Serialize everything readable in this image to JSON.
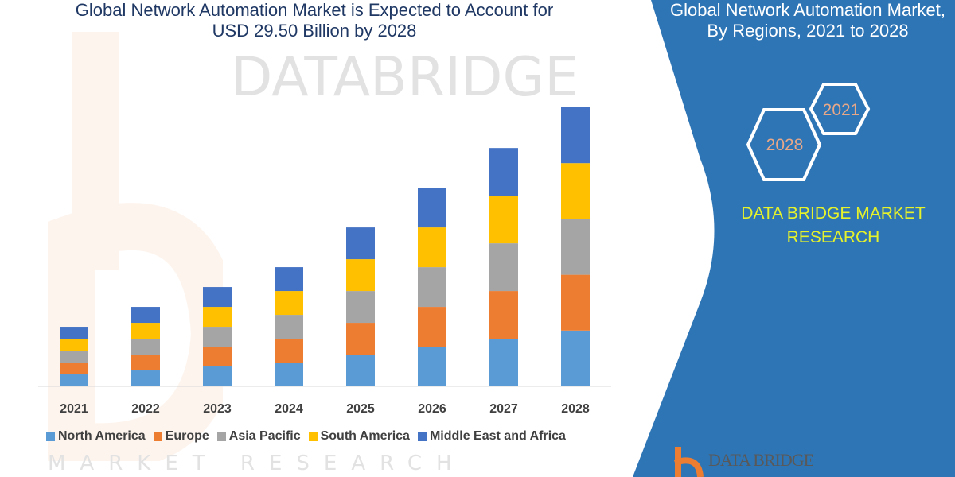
{
  "header": {
    "title_line1": "Global Network Automation Market is Expected to Account for",
    "title_line2": "USD 29.50 Billion by 2028"
  },
  "panel": {
    "title_line1": "Global Network Automation Market,",
    "title_line2": "By Regions, 2021 to 2028",
    "hex_year_1": "2021",
    "hex_year_2": "2028",
    "brand_line1": "DATA BRIDGE MARKET",
    "brand_line2": "RESEARCH",
    "logo_text": "DATA BRIDGE",
    "color": "#2e75b6",
    "brand_color": "#e6f22a",
    "hex_text_color": "#e8a888"
  },
  "watermark": {
    "line1": "DATABRIDGE",
    "line2": "MARKET RESEARCH"
  },
  "chart_data": {
    "type": "bar",
    "stacked": true,
    "title": "Global Network Automation Market is Expected to Account for USD 29.50 Billion by 2028",
    "xlabel": "",
    "ylabel": "",
    "categories": [
      "2021",
      "2022",
      "2023",
      "2024",
      "2025",
      "2026",
      "2027",
      "2028"
    ],
    "series": [
      {
        "name": "North America",
        "color": "#5b9bd5",
        "values": [
          1.26,
          1.68,
          2.1,
          2.52,
          3.36,
          4.2,
          5.04,
          5.9
        ]
      },
      {
        "name": "Europe",
        "color": "#ed7d31",
        "values": [
          1.26,
          1.68,
          2.1,
          2.52,
          3.36,
          4.2,
          5.04,
          5.9
        ]
      },
      {
        "name": "Asia Pacific",
        "color": "#a5a5a5",
        "values": [
          1.26,
          1.68,
          2.1,
          2.52,
          3.36,
          4.2,
          5.04,
          5.9
        ]
      },
      {
        "name": "South America",
        "color": "#ffc000",
        "values": [
          1.26,
          1.68,
          2.1,
          2.52,
          3.36,
          4.2,
          5.04,
          5.9
        ]
      },
      {
        "name": "Middle East and Africa",
        "color": "#4472c4",
        "values": [
          1.26,
          1.68,
          2.1,
          2.52,
          3.36,
          4.2,
          5.04,
          5.9
        ]
      }
    ],
    "ylim": [
      0,
      29.5
    ],
    "y_axis_visible": false,
    "grid": false,
    "legend": "bottom"
  }
}
